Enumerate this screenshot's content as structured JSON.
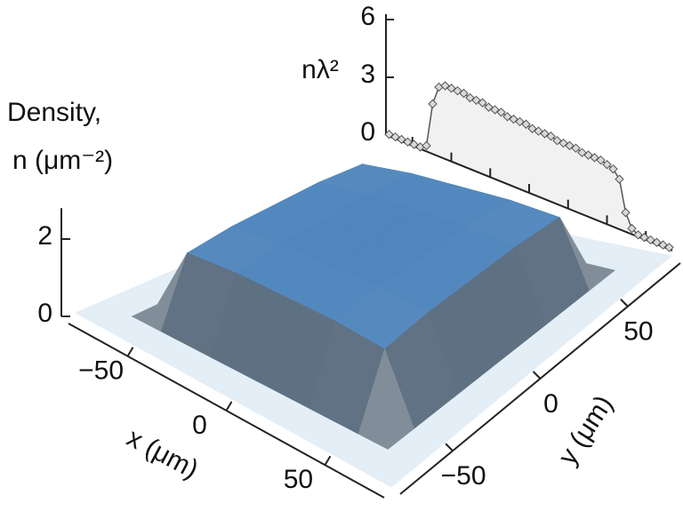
{
  "chart_data": [
    {
      "type": "surface",
      "x": [
        -80,
        -65,
        -50,
        -25,
        0,
        25,
        50,
        65,
        80
      ],
      "y": [
        -80,
        -65,
        -50,
        -25,
        0,
        25,
        50,
        65,
        80
      ],
      "z": [
        [
          0,
          0,
          0,
          0,
          0,
          0,
          0,
          0,
          0
        ],
        [
          0,
          0,
          0,
          0,
          0,
          0,
          0,
          0,
          0
        ],
        [
          0,
          0,
          1.7,
          1.8,
          1.8,
          1.8,
          1.7,
          0,
          0
        ],
        [
          0,
          0,
          1.8,
          1.9,
          1.9,
          1.9,
          1.8,
          0,
          0
        ],
        [
          0,
          0,
          1.8,
          1.9,
          1.9,
          1.9,
          1.8,
          0,
          0
        ],
        [
          0,
          0,
          1.8,
          1.9,
          1.9,
          1.9,
          1.8,
          0,
          0
        ],
        [
          0,
          0,
          1.7,
          1.8,
          1.8,
          1.8,
          1.7,
          0,
          0
        ],
        [
          0,
          0,
          0,
          0,
          0,
          0,
          0,
          0,
          0
        ],
        [
          0,
          0,
          0,
          0,
          0,
          0,
          0,
          0,
          0
        ]
      ],
      "xlim": [
        -80,
        80
      ],
      "ylim": [
        -80,
        80
      ],
      "zlim": [
        0,
        2.8
      ],
      "xticks": [
        {
          "value": -50,
          "label": "−50"
        },
        0,
        50
      ],
      "yticks": [
        {
          "value": -50,
          "label": "−50"
        },
        0,
        50
      ],
      "zticks": [
        0,
        2
      ],
      "xlabel": "x (μm)",
      "ylabel": "y (μm)",
      "zlabel": [
        "Density,",
        "n (μm⁻²)"
      ],
      "colormap": [
        "#e4eef6",
        "#4f86bd"
      ]
    },
    {
      "type": "line",
      "x": [
        -90,
        -86,
        -82,
        -78,
        -74,
        -70,
        -66,
        -62,
        -58,
        -54,
        -50,
        -46,
        -42,
        -38,
        -34,
        -30,
        -26,
        -22,
        -18,
        -14,
        -10,
        -6,
        -2,
        2,
        6,
        10,
        14,
        18,
        22,
        26,
        30,
        34,
        38,
        42,
        46,
        50,
        54,
        58,
        62,
        66,
        70,
        74,
        78,
        82,
        86,
        90
      ],
      "values": [
        0.1,
        0.1,
        0.1,
        0.1,
        0.1,
        0.1,
        0.3,
        2.6,
        3.6,
        3.8,
        3.8,
        3.8,
        3.8,
        3.7,
        3.7,
        3.7,
        3.6,
        3.6,
        3.6,
        3.5,
        3.5,
        3.5,
        3.5,
        3.4,
        3.4,
        3.4,
        3.4,
        3.3,
        3.3,
        3.3,
        3.3,
        3.2,
        3.2,
        3.2,
        3.2,
        3.1,
        3.0,
        2.6,
        1.0,
        0.3,
        0.1,
        0.1,
        0.1,
        0.1,
        0.1,
        0.1
      ],
      "xlim": [
        -92,
        92
      ],
      "xticks": [
        -75,
        -50,
        -25,
        0,
        25,
        50,
        75
      ],
      "ylim": [
        0,
        6
      ],
      "yticks": [
        0,
        3,
        6
      ],
      "ylabel": "nλ²",
      "color": "#555555",
      "marker_color": "#d9d9d9",
      "fill": "#f1f1f1"
    }
  ]
}
